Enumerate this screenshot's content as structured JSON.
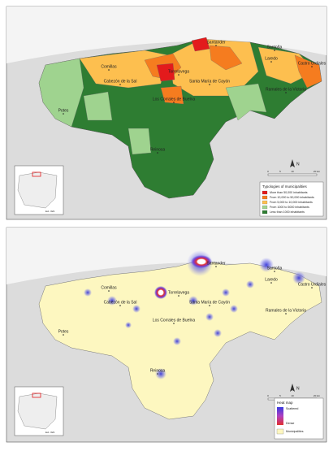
{
  "panels": [
    {
      "towns": [
        "Santander",
        "Santoña",
        "Laredo",
        "Castro Urdiales",
        "Comillas",
        "Cabezón de la Sal",
        "Torrelavega",
        "Los Corrales de Buelna",
        "Santa María de Cayón",
        "Ramales de la Victoria",
        "Potes",
        "Reinosa"
      ],
      "legend": {
        "title": "Typologies of municipalities",
        "items": [
          {
            "label": "More than 50,000 inhabitants",
            "color": "#e31a1c"
          },
          {
            "label": "From 10,000 to 50,000 inhabitants",
            "color": "#f57c1f"
          },
          {
            "label": "From 5,000 to 10,000 inhabitants",
            "color": "#fdbf4f"
          },
          {
            "label": "From 1000 to 5000 inhabitants",
            "color": "#9fd38f"
          },
          {
            "label": "Less than 1000 inhabitants",
            "color": "#2e7d32"
          }
        ]
      },
      "inset_credit": "Ext. IGN",
      "scale": [
        "0",
        "5",
        "10",
        "20 km"
      ],
      "north": "N"
    },
    {
      "towns": [
        "Santander",
        "Santoña",
        "Laredo",
        "Castro Urdiales",
        "Comillas",
        "Cabezón de la Sal",
        "Torrelavega",
        "Los Corrales de Buelna",
        "Santa María de Cayón",
        "Ramales de la Victoria",
        "Potes",
        "Reinosa"
      ],
      "legend": {
        "title": "Heat map",
        "items": [
          {
            "label": "Scattered",
            "color": "#3a3adf"
          },
          {
            "label": "Dense",
            "color": "#e03030"
          },
          {
            "label": "Municipalities",
            "color": "#fdf7c0"
          }
        ]
      },
      "inset_credit": "Ext. IGN",
      "scale": [
        "0",
        "5",
        "10",
        "20 km"
      ],
      "north": "N"
    }
  ]
}
